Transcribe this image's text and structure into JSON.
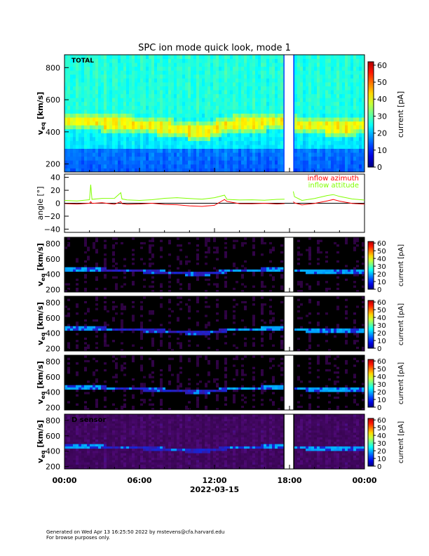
{
  "title": "SPC ion mode quick look, mode 1",
  "footer": {
    "line1": "Generated on Wed Apr 13 16:25:50 2022 by mstevens@cfa.harvard.edu",
    "line2": "For browse purposes only."
  },
  "chart_data": {
    "type": "heatmap",
    "xlabel": "2022-03-15",
    "x_ticks": [
      "00:00",
      "06:00",
      "12:00",
      "18:00",
      "00:00"
    ],
    "x_range_hours": [
      0,
      24
    ],
    "data_gap_hours": [
      17.6,
      18.3
    ],
    "spectrogram_ylabel": "v",
    "spectrogram_ylabel_sub": "eq",
    "spectrogram_yunit": "[km/s]",
    "colorbar_label": "current [pA]",
    "colorbar_range": [
      0,
      62
    ],
    "colorbar_ticks": [
      "0",
      "10",
      "20",
      "30",
      "40",
      "50",
      "60"
    ],
    "panels": [
      {
        "label": "TOTAL",
        "ylim": [
          150,
          880
        ],
        "yticks": [
          "200",
          "400",
          "600",
          "800"
        ],
        "style": "jet"
      },
      {
        "label": "",
        "ylim": [
          170,
          880
        ],
        "yticks": [
          "200",
          "400",
          "600",
          "800"
        ],
        "style": "dark"
      },
      {
        "label": "",
        "ylim": [
          170,
          880
        ],
        "yticks": [
          "200",
          "400",
          "600",
          "800"
        ],
        "style": "dark"
      },
      {
        "label": "",
        "ylim": [
          170,
          880
        ],
        "yticks": [
          "200",
          "400",
          "600",
          "800"
        ],
        "style": "dark"
      },
      {
        "label": "D sensor",
        "ylim": [
          170,
          880
        ],
        "yticks": [
          "200",
          "400",
          "600",
          "800"
        ],
        "style": "darknoisy"
      }
    ],
    "band_speed_kms": {
      "hours": [
        0,
        1,
        2,
        3,
        4,
        5,
        6,
        7,
        8,
        9,
        10,
        11,
        12,
        13,
        14,
        15,
        16,
        17,
        18.3,
        19,
        20,
        21,
        22,
        23,
        24
      ],
      "values": [
        470,
        470,
        465,
        460,
        455,
        450,
        445,
        440,
        430,
        420,
        410,
        400,
        420,
        445,
        450,
        455,
        460,
        465,
        450,
        445,
        440,
        435,
        430,
        435,
        440
      ]
    },
    "angle_panel": {
      "ylabel": "angle [°]",
      "ylim": [
        -45,
        45
      ],
      "yticks": [
        "40",
        "20",
        "0",
        "−20",
        "−40"
      ],
      "legend": [
        "inflow azimuth",
        "inflow attitude"
      ],
      "series": [
        {
          "name": "inflow azimuth",
          "color": "#ff0000",
          "x": [
            0,
            1,
            2,
            2.1,
            2.2,
            3,
            4,
            4.5,
            4.6,
            5,
            6,
            7,
            8,
            9,
            10,
            11,
            12,
            12.8,
            13,
            14,
            15,
            16,
            17,
            17.6,
            18.3,
            18.4,
            19,
            20,
            21,
            21.5,
            22,
            23,
            24
          ],
          "y": [
            -1,
            -1,
            0,
            3,
            0,
            1,
            -1,
            2,
            -1,
            -2,
            -1,
            0,
            -2,
            -3,
            -4,
            -5,
            -3,
            6,
            3,
            -1,
            -1,
            0,
            -1,
            -1,
            3,
            1,
            -3,
            -1,
            3,
            6,
            3,
            -1,
            -2
          ]
        },
        {
          "name": "inflow attitude",
          "color": "#80ff00",
          "x": [
            0,
            1,
            2,
            2.1,
            2.2,
            3,
            4,
            4.5,
            4.6,
            5,
            6,
            7,
            8,
            9,
            10,
            11,
            12,
            12.8,
            13,
            14,
            15,
            16,
            17,
            17.6,
            18.3,
            18.4,
            19,
            20,
            21,
            21.5,
            22,
            23,
            24
          ],
          "y": [
            5,
            4,
            6,
            28,
            6,
            7,
            7,
            16,
            6,
            5,
            5,
            6,
            7,
            8,
            8,
            7,
            8,
            12,
            6,
            5,
            5,
            5,
            6,
            6,
            18,
            10,
            4,
            8,
            12,
            14,
            10,
            6,
            5
          ]
        }
      ]
    }
  }
}
